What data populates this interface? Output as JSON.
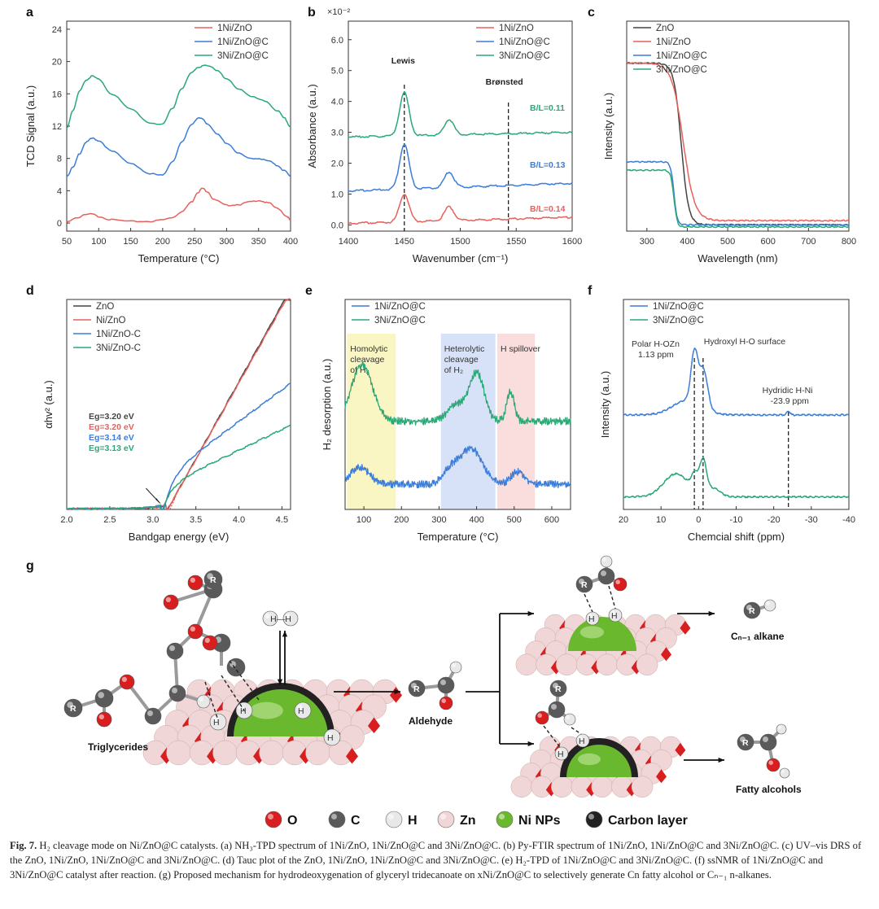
{
  "chart_data": [
    {
      "panel": "a",
      "type": "line",
      "xlabel": "Temperature (°C)",
      "ylabel": "TCD Signal (a.u.)",
      "xlim": [
        50,
        400
      ],
      "ylim": [
        -1,
        25
      ],
      "xticks": [
        50,
        100,
        150,
        200,
        250,
        300,
        350,
        400
      ],
      "yticks": [
        0,
        4,
        8,
        12,
        16,
        20,
        24
      ],
      "series": [
        {
          "name": "1Ni/ZnO",
          "color": "#e8605c",
          "x": [
            50,
            65,
            80,
            90,
            100,
            120,
            150,
            180,
            200,
            215,
            230,
            245,
            255,
            262,
            270,
            280,
            300,
            320,
            335,
            350,
            365,
            380,
            395,
            400
          ],
          "y": [
            0.1,
            0.6,
            1.1,
            1.1,
            0.8,
            0.4,
            0.2,
            0.2,
            0.4,
            0.7,
            1.4,
            2.6,
            3.8,
            4.3,
            3.9,
            2.9,
            2.2,
            2.3,
            2.6,
            2.8,
            2.5,
            1.8,
            0.8,
            0.3
          ]
        },
        {
          "name": "1Ni/ZnO@C",
          "color": "#3b7dd8",
          "x": [
            50,
            60,
            70,
            80,
            90,
            100,
            120,
            150,
            180,
            200,
            215,
            230,
            245,
            255,
            262,
            270,
            285,
            300,
            320,
            335,
            350,
            365,
            380,
            390,
            400
          ],
          "y": [
            5.8,
            6.9,
            8.6,
            10.0,
            10.5,
            10.2,
            8.9,
            7.4,
            6.1,
            5.9,
            7.6,
            10.0,
            12.2,
            13.0,
            12.9,
            12.3,
            11.0,
            9.9,
            8.6,
            8.0,
            8.0,
            7.7,
            7.1,
            6.5,
            5.8
          ]
        },
        {
          "name": "3Ni/ZnO@C",
          "color": "#2aa876",
          "x": [
            50,
            60,
            70,
            80,
            90,
            100,
            120,
            150,
            180,
            200,
            215,
            230,
            245,
            255,
            265,
            275,
            285,
            300,
            320,
            340,
            360,
            380,
            390,
            400
          ],
          "y": [
            11.8,
            14.0,
            16.3,
            17.7,
            18.2,
            17.8,
            16.0,
            14.1,
            12.4,
            12.2,
            14.2,
            16.7,
            18.6,
            19.3,
            19.5,
            19.4,
            18.9,
            17.8,
            16.6,
            15.6,
            15.1,
            13.9,
            13.0,
            11.9
          ]
        }
      ],
      "legend": "top-right"
    },
    {
      "panel": "b",
      "type": "line",
      "xlabel": "Wavenumber (cm⁻¹)",
      "ylabel": "Absorbance (a.u.)",
      "yscale": "×10⁻²",
      "xlim": [
        1400,
        1600
      ],
      "ylim": [
        -0.2,
        6.6
      ],
      "xticks": [
        1400,
        1450,
        1500,
        1550,
        1600
      ],
      "yticks": [
        0.0,
        1.0,
        2.0,
        3.0,
        4.0,
        5.0,
        6.0
      ],
      "series": [
        {
          "name": "1Ni/ZnO",
          "color": "#e8605c",
          "baseline": 0.05,
          "peaks": [
            [
              1450,
              0.9
            ],
            [
              1490,
              0.45
            ]
          ],
          "drift": 0.2
        },
        {
          "name": "1Ni/ZnO@C",
          "color": "#3b7dd8",
          "baseline": 1.1,
          "peaks": [
            [
              1450,
              1.45
            ],
            [
              1490,
              0.5
            ]
          ],
          "drift": 0.25
        },
        {
          "name": "3Ni/ZnO@C",
          "color": "#2aa876",
          "baseline": 2.85,
          "peaks": [
            [
              1450,
              1.4
            ],
            [
              1490,
              0.5
            ]
          ],
          "drift": 0.15
        }
      ],
      "annotations": {
        "lewis": "Lewis",
        "bronsted": "Brønsted",
        "lewis_x": 1450,
        "bronsted_x": 1543,
        "ratios": [
          {
            "text": "B/L=0.11",
            "color": "#2aa876"
          },
          {
            "text": "B/L=0.13",
            "color": "#3b7dd8"
          },
          {
            "text": "B/L=0.14",
            "color": "#e8605c"
          }
        ]
      },
      "legend": "top-right"
    },
    {
      "panel": "c",
      "type": "line",
      "xlabel": "Wavelength (nm)",
      "ylabel": "Intensity (a.u.)",
      "xlim": [
        250,
        800
      ],
      "xticks": [
        300,
        400,
        500,
        600,
        700,
        800
      ],
      "series": [
        {
          "name": "ZnO",
          "color": "#444444",
          "high": 0.8,
          "low": 0.03,
          "edge": 385,
          "width": 9
        },
        {
          "name": "1Ni/ZnO",
          "color": "#e8605c",
          "high": 0.8,
          "low": 0.05,
          "edge": 390,
          "width": 14
        },
        {
          "name": "1Ni/ZnO@C",
          "color": "#3b7dd8",
          "high": 0.33,
          "low": 0.03,
          "edge": 367,
          "width": 4
        },
        {
          "name": "3Ni/ZnO@C",
          "color": "#2aa876",
          "high": 0.29,
          "low": 0.02,
          "edge": 367,
          "width": 4
        }
      ],
      "legend": "top-left"
    },
    {
      "panel": "d",
      "type": "line",
      "xlabel": "Bandgap energy (eV)",
      "ylabel": "αhv² (a.u.)",
      "xlim": [
        2.0,
        4.6
      ],
      "xticks": [
        2.0,
        2.5,
        3.0,
        3.5,
        4.0,
        4.5
      ],
      "series": [
        {
          "name": "ZnO",
          "color": "#444444",
          "eg": 3.2,
          "end": 0.98
        },
        {
          "name": "Ni/ZnO",
          "color": "#e8605c",
          "eg": 3.2,
          "end": 0.97
        },
        {
          "name": "1Ni/ZnO-C",
          "color": "#3b7dd8",
          "eg": 3.14,
          "end": 0.58
        },
        {
          "name": "3Ni/ZnO-C",
          "color": "#2aa876",
          "eg": 3.13,
          "end": 0.38
        }
      ],
      "labels": [
        {
          "text": "Eg=3.20 eV",
          "color": "#444444"
        },
        {
          "text": "Eg=3.20 eV",
          "color": "#e8605c"
        },
        {
          "text": "Eg=3.14 eV",
          "color": "#3b7dd8"
        },
        {
          "text": "Eg=3.13 eV",
          "color": "#2aa876"
        }
      ],
      "legend": "top-left"
    },
    {
      "panel": "e",
      "type": "line",
      "xlabel": "Temperature (°C)",
      "ylabel": "H₂ desorption (a.u.)",
      "xlim": [
        50,
        650
      ],
      "xticks": [
        100,
        200,
        300,
        400,
        500,
        600
      ],
      "bands": [
        {
          "from": 55,
          "to": 185,
          "color": "#f7f3b0",
          "label": "Homolytic cleavage of H₂"
        },
        {
          "from": 305,
          "to": 450,
          "color": "#c9d8f5",
          "label": "Heterolytic cleavage of H₂"
        },
        {
          "from": 455,
          "to": 555,
          "color": "#f8d2d2",
          "label": "H spillover"
        }
      ],
      "series": [
        {
          "name": "1Ni/ZnO@C",
          "color": "#3b7dd8",
          "baseline": 0.12,
          "peaks": [
            [
              90,
              0.08,
              25
            ],
            [
              330,
              0.06,
              20
            ],
            [
              385,
              0.17,
              30
            ],
            [
              510,
              0.06,
              18
            ]
          ]
        },
        {
          "name": "3Ni/ZnO@C",
          "color": "#2aa876",
          "baseline": 0.42,
          "peaks": [
            [
              95,
              0.27,
              28
            ],
            [
              345,
              0.08,
              22
            ],
            [
              400,
              0.23,
              20
            ],
            [
              490,
              0.14,
              10
            ]
          ]
        }
      ],
      "legend": "top-left"
    },
    {
      "panel": "f",
      "type": "line",
      "xlabel": "Chemcial shift (ppm)",
      "ylabel": "Intensity (a.u.)",
      "xlim": [
        20,
        -40
      ],
      "xticks": [
        20,
        10,
        0,
        -10,
        -20,
        -30,
        -40
      ],
      "series": [
        {
          "name": "1Ni/ZnO@C",
          "color": "#3b7dd8",
          "baseline": 0.45
        },
        {
          "name": "3Ni/ZnO@C",
          "color": "#2aa876",
          "baseline": 0.06
        }
      ],
      "annotations": [
        {
          "text": "Polar H-OZn",
          "sub": "1.13 ppm",
          "x": 1.13
        },
        {
          "text": "Hydroxyl H-O surface",
          "x": -1.2
        },
        {
          "text": "Hydridic H-Ni",
          "sub": "-23.9 ppm",
          "x": -23.9
        }
      ],
      "legend": "top-left"
    }
  ],
  "panel_labels": [
    "a",
    "b",
    "c",
    "d",
    "e",
    "f",
    "g"
  ],
  "mechanism": {
    "labels": {
      "triglycerides": "Triglycerides",
      "aldehyde": "Aldehyde",
      "alkane": "Cₙ₋₁ alkane",
      "fatty_alcohols": "Fatty alcohols",
      "h2": "H—H",
      "r": "R",
      "h_minus": "H",
      "h_plus": "H"
    },
    "colors": {
      "oxygen": "#d81e1e",
      "carbon": "#5a5a5a",
      "hydrogen": "#e8e8e8",
      "zinc": "#f0d6d6",
      "ni": "#6ab82e",
      "carbon_layer": "#222222"
    },
    "key": [
      {
        "name": "O",
        "color": "#d81e1e"
      },
      {
        "name": "C",
        "color": "#5a5a5a"
      },
      {
        "name": "H",
        "color": "#e8e8e8"
      },
      {
        "name": "Zn",
        "color": "#f0d6d6"
      },
      {
        "name": "Ni NPs",
        "color": "#6ab82e"
      },
      {
        "name": "Carbon layer",
        "color": "#222222"
      }
    ]
  },
  "caption": {
    "fig_label": "Fig. 7.",
    "text": "H₂ cleavage mode on Ni/ZnO@C catalysts. (a) NH₃-TPD spectrum of 1Ni/ZnO, 1Ni/ZnO@C and 3Ni/ZnO@C. (b) Py-FTIR spectrum of 1Ni/ZnO, 1Ni/ZnO@C and 3Ni/ZnO@C. (c) UV–vis DRS of the ZnO, 1Ni/ZnO, 1Ni/ZnO@C and 3Ni/ZnO@C. (d) Tauc plot of the ZnO, 1Ni/ZnO, 1Ni/ZnO@C and 3Ni/ZnO@C. (e) H₂-TPD of 1Ni/ZnO@C and 3Ni/ZnO@C. (f) ssNMR of 1Ni/ZnO@C and 3Ni/ZnO@C catalyst after reaction. (g) Proposed mechanism for hydrodeoxygenation of glyceryl tridecanoate on xNi/ZnO@C to selectively generate Cn fatty alcohol or Cₙ₋₁ n-alkanes."
  }
}
